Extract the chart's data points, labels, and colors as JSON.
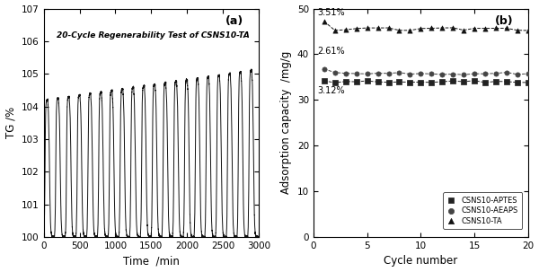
{
  "panel_a": {
    "title": "20-Cycle Regenerability Test of CSNS10-TA",
    "xlabel": "Time  /min",
    "ylabel": "TG /%",
    "label_a": "(a)",
    "xlim": [
      0,
      3000
    ],
    "ylim": [
      100,
      107
    ],
    "yticks": [
      100,
      101,
      102,
      103,
      104,
      105,
      106,
      107
    ],
    "xticks": [
      0,
      500,
      1000,
      1500,
      2000,
      2500,
      3000
    ],
    "n_cycles": 20,
    "cycle_period": 150,
    "baseline": 100.0,
    "peak_start": 4.2,
    "peak_end": 5.1,
    "color": "#111111"
  },
  "panel_b": {
    "label_b": "(b)",
    "xlabel": "Cycle number",
    "ylabel": "Adsorption capacity  /mg/g",
    "xlim": [
      0,
      20
    ],
    "ylim": [
      0,
      50
    ],
    "yticks": [
      0,
      10,
      20,
      30,
      40,
      50
    ],
    "xticks": [
      0,
      5,
      10,
      15,
      20
    ],
    "series": [
      {
        "label": "CSNS10-APTES",
        "marker": "s",
        "color": "#222222",
        "base_val": 34.0,
        "first_val": 34.2,
        "variation": 0.25,
        "pct_label": "3.12%",
        "pct_x": 0.35,
        "pct_y": 31.5
      },
      {
        "label": "CSNS10-AEAPS",
        "marker": "o",
        "color": "#444444",
        "base_val": 35.8,
        "first_val": 36.8,
        "variation": 0.3,
        "pct_label": "2.61%",
        "pct_x": 0.35,
        "pct_y": 40.0
      },
      {
        "label": "CSNS10-TA",
        "marker": "^",
        "color": "#111111",
        "base_val": 45.5,
        "first_val": 47.2,
        "variation": 0.3,
        "pct_label": "3.51%",
        "pct_x": 0.35,
        "pct_y": 48.5
      }
    ],
    "n_cycles": 20
  },
  "background_color": "#ffffff",
  "fig_width": 6.0,
  "fig_height": 3.03
}
